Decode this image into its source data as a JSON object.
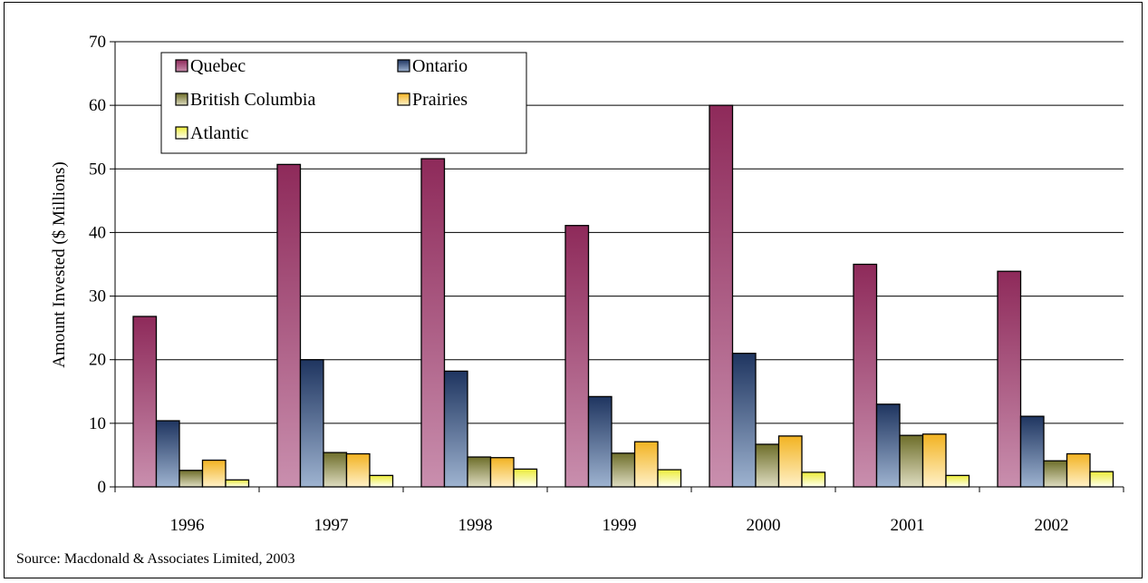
{
  "chart_data": {
    "type": "bar",
    "title": "",
    "xlabel": "",
    "ylabel": "Amount Invested ($ Millions)",
    "ylim": [
      0,
      70
    ],
    "yticks": [
      0,
      10,
      20,
      30,
      40,
      50,
      60,
      70
    ],
    "categories": [
      "1996",
      "1997",
      "1998",
      "1999",
      "2000",
      "2001",
      "2002"
    ],
    "series": [
      {
        "name": "Quebec",
        "values": [
          26.8,
          50.7,
          51.6,
          41.1,
          60.0,
          35.0,
          33.9
        ],
        "color_top": "#8e2a5a",
        "color_bottom": "#c98fae"
      },
      {
        "name": "Ontario",
        "values": [
          10.4,
          20.0,
          18.2,
          14.2,
          21.0,
          13.0,
          11.1
        ],
        "color_top": "#1f3560",
        "color_bottom": "#9eb3d0"
      },
      {
        "name": "British Columbia",
        "values": [
          2.6,
          5.4,
          4.7,
          5.3,
          6.7,
          8.1,
          4.1
        ],
        "color_top": "#6e6e2a",
        "color_bottom": "#dedcc0"
      },
      {
        "name": "Prairies",
        "values": [
          4.2,
          5.2,
          4.6,
          7.1,
          8.0,
          8.3,
          5.2
        ],
        "color_top": "#f2b322",
        "color_bottom": "#fff1c8"
      },
      {
        "name": "Atlantic",
        "values": [
          1.1,
          1.8,
          2.8,
          2.7,
          2.3,
          1.8,
          2.4
        ],
        "color_top": "#ecec3a",
        "color_bottom": "#fffff0"
      }
    ],
    "legend": "top-left",
    "grid": true
  },
  "source": "Source: Macdonald & Associates Limited, 2003"
}
